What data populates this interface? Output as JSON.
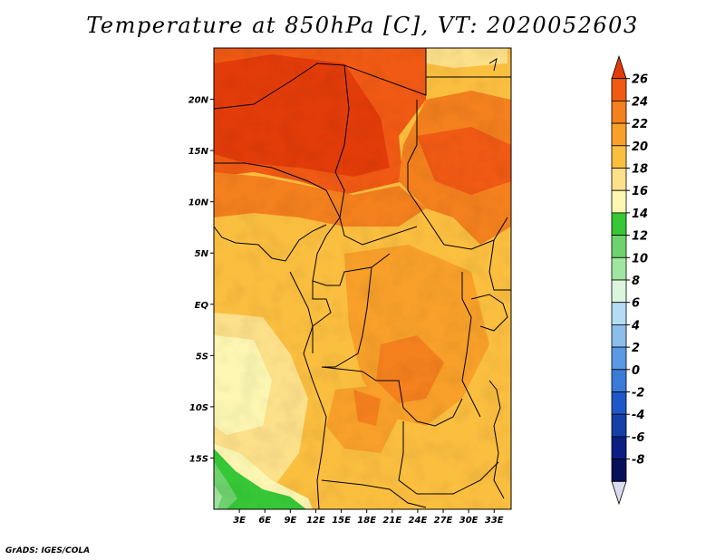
{
  "title": "Temperature at 850hPa [C], VT: 2020052603",
  "credit": "GrADS: IGES/COLA",
  "map": {
    "lon_range": [
      0,
      35
    ],
    "lat_range": [
      -20,
      25
    ],
    "lon_ticks": [
      "3E",
      "6E",
      "9E",
      "12E",
      "15E",
      "18E",
      "21E",
      "24E",
      "27E",
      "30E",
      "33E"
    ],
    "lat_ticks": [
      "20N",
      "15N",
      "10N",
      "5N",
      "EQ",
      "5S",
      "10S",
      "15S"
    ]
  },
  "colorbar": {
    "labels": [
      "26",
      "24",
      "22",
      "20",
      "18",
      "16",
      "14",
      "12",
      "10",
      "8",
      "6",
      "4",
      "2",
      "0",
      "-2",
      "-4",
      "-6",
      "-8"
    ],
    "colors": [
      "#e23c0a",
      "#f05a14",
      "#f4801e",
      "#f8a02a",
      "#fbbf40",
      "#fde08a",
      "#fcf6b2",
      "#37c837",
      "#6ed26e",
      "#a0e6a0",
      "#dcf5dc",
      "#b4dcf5",
      "#8cbeec",
      "#5a9ae4",
      "#3c7ad8",
      "#1e58c8",
      "#1440a8",
      "#0c1e84",
      "#061058",
      "#dcdcf0"
    ]
  }
}
